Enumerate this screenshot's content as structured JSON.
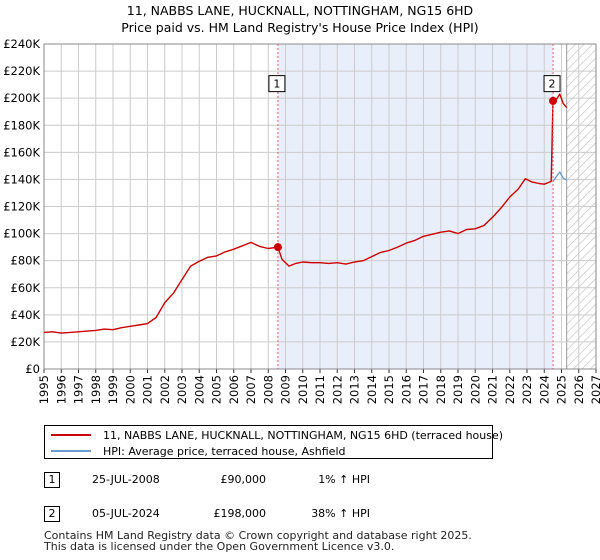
{
  "title_line1": "11, NABBS LANE, HUCKNALL, NOTTINGHAM, NG15 6HD",
  "title_line2": "Price paid vs. HM Land Registry's House Price Index (HPI)",
  "colors": {
    "property_line": "#cc0000",
    "hpi_line": "#6a9bd3",
    "span_shade": "#e8eefa",
    "future_hatch": "#bbbbbb",
    "grid": "#cccccc",
    "marker_line": "#e06070"
  },
  "chart_data": {
    "type": "line",
    "title": "11, NABBS LANE, HUCKNALL, NOTTINGHAM, NG15 6HD — Price paid vs. HM Land Registry's House Price Index (HPI)",
    "xlim": [
      1995,
      2027
    ],
    "ylim": [
      0,
      240000
    ],
    "x_ticks": [
      "1995",
      "1996",
      "1997",
      "1998",
      "1999",
      "2000",
      "2001",
      "2002",
      "2003",
      "2004",
      "2005",
      "2006",
      "2007",
      "2008",
      "2009",
      "2010",
      "2011",
      "2012",
      "2013",
      "2014",
      "2015",
      "2016",
      "2017",
      "2018",
      "2019",
      "2020",
      "2021",
      "2022",
      "2023",
      "2024",
      "2025",
      "2026",
      "2027"
    ],
    "y_ticks": [
      {
        "value": 0,
        "label": "£0"
      },
      {
        "value": 20000,
        "label": "£20K"
      },
      {
        "value": 40000,
        "label": "£40K"
      },
      {
        "value": 60000,
        "label": "£60K"
      },
      {
        "value": 80000,
        "label": "£80K"
      },
      {
        "value": 100000,
        "label": "£100K"
      },
      {
        "value": 120000,
        "label": "£120K"
      },
      {
        "value": 140000,
        "label": "£140K"
      },
      {
        "value": 160000,
        "label": "£160K"
      },
      {
        "value": 180000,
        "label": "£180K"
      },
      {
        "value": 200000,
        "label": "£200K"
      },
      {
        "value": 220000,
        "label": "£220K"
      },
      {
        "value": 240000,
        "label": "£240K"
      }
    ],
    "shaded_span": [
      2008.56,
      2024.51
    ],
    "future_from": 2025.3,
    "series": [
      {
        "name": "11, NABBS LANE, HUCKNALL, NOTTINGHAM, NG15 6HD (terraced house)",
        "x": [
          1995.0,
          1995.5,
          1996.0,
          1996.5,
          1997.0,
          1997.5,
          1998.0,
          1998.5,
          1999.0,
          1999.5,
          2000.0,
          2000.5,
          2001.0,
          2001.5,
          2002.0,
          2002.5,
          2003.0,
          2003.5,
          2004.0,
          2004.5,
          2005.0,
          2005.5,
          2006.0,
          2006.5,
          2007.0,
          2007.5,
          2008.0,
          2008.56,
          2008.8,
          2009.2,
          2009.6,
          2010.0,
          2010.5,
          2011.0,
          2011.5,
          2012.0,
          2012.5,
          2013.0,
          2013.5,
          2014.0,
          2014.5,
          2015.0,
          2015.5,
          2016.0,
          2016.5,
          2017.0,
          2017.5,
          2018.0,
          2018.5,
          2019.0,
          2019.5,
          2020.0,
          2020.5,
          2021.0,
          2021.5,
          2022.0,
          2022.5,
          2022.9,
          2023.3,
          2023.7,
          2024.0,
          2024.4,
          2024.51,
          2024.7,
          2024.9,
          2025.1,
          2025.3
        ],
        "values": [
          27000,
          27500,
          26500,
          27000,
          27500,
          28000,
          28500,
          29500,
          29000,
          30500,
          31500,
          32500,
          33500,
          38000,
          49000,
          56000,
          66000,
          76000,
          79500,
          82500,
          83500,
          86500,
          88500,
          91000,
          93500,
          90500,
          89000,
          90000,
          81000,
          76000,
          78000,
          79000,
          78500,
          78500,
          78000,
          78500,
          77500,
          79000,
          80000,
          83000,
          86000,
          87500,
          90000,
          93000,
          95000,
          98000,
          99500,
          101000,
          102000,
          100000,
          103000,
          103500,
          106000,
          112000,
          119000,
          127000,
          133000,
          140500,
          138000,
          137000,
          136500,
          138500,
          198000,
          199000,
          203000,
          196000,
          193000
        ]
      },
      {
        "name": "HPI: Average price, terraced house, Ashfield",
        "x": [
          2024.51,
          2024.7,
          2024.9,
          2025.1,
          2025.3
        ],
        "values": [
          138500,
          142000,
          145500,
          141000,
          139500
        ]
      }
    ],
    "annotations": [
      {
        "label": "1",
        "x": 2008.56,
        "y": 90000,
        "box_y": 210000
      },
      {
        "label": "2",
        "x": 2024.51,
        "y": 198000,
        "box_y": 210000
      }
    ]
  },
  "legend": {
    "property_label": "11, NABBS LANE, HUCKNALL, NOTTINGHAM, NG15 6HD (terraced house)",
    "hpi_label": "HPI: Average price, terraced house, Ashfield"
  },
  "sales": [
    {
      "num": "1",
      "date": "25-JUL-2008",
      "price": "£90,000",
      "hpi": "1% ↑ HPI"
    },
    {
      "num": "2",
      "date": "05-JUL-2024",
      "price": "£198,000",
      "hpi": "38% ↑ HPI"
    }
  ],
  "footer_line1": "Contains HM Land Registry data © Crown copyright and database right 2025.",
  "footer_line2": "This data is licensed under the Open Government Licence v3.0."
}
